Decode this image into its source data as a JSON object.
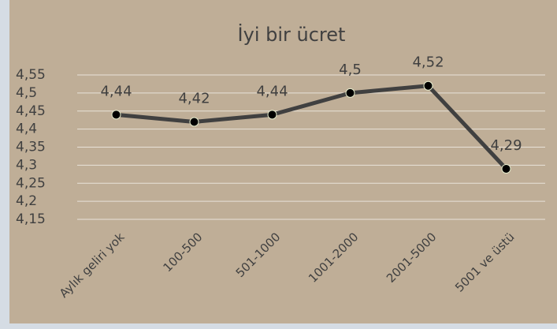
{
  "chart_data": {
    "type": "line",
    "title": "İyi bir ücret",
    "categories": [
      "Aylık geliri yok",
      "100-500",
      "501-1000",
      "1001-2000",
      "2001-5000",
      "5001 ve üstü"
    ],
    "series": [
      {
        "name": "İyi bir ücret",
        "color": "#404040",
        "values": [
          4.44,
          4.42,
          4.44,
          4.5,
          4.52,
          4.29
        ],
        "value_labels": [
          "4,44",
          "4,42",
          "4,44",
          "4,5",
          "4,52",
          "4,29"
        ]
      }
    ],
    "ylim": [
      4.15,
      4.55
    ],
    "yticks": [
      {
        "value": 4.15,
        "label": "4,15"
      },
      {
        "value": 4.2,
        "label": "4,2"
      },
      {
        "value": 4.25,
        "label": "4,25"
      },
      {
        "value": 4.3,
        "label": "4,3"
      },
      {
        "value": 4.35,
        "label": "4,35"
      },
      {
        "value": 4.4,
        "label": "4,4"
      },
      {
        "value": 4.45,
        "label": "4,45"
      },
      {
        "value": 4.5,
        "label": "4,5"
      },
      {
        "value": 4.55,
        "label": "4,55"
      }
    ],
    "grid": true
  }
}
